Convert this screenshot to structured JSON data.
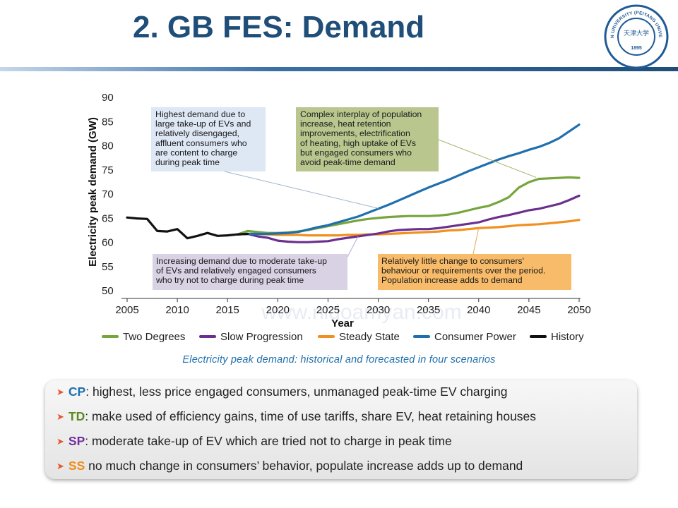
{
  "title": "2. GB FES: Demand",
  "logo": {
    "text_top": "TIANJIN UNIVERSITY (PEIYANG UNIVERSITY)",
    "year": "1895",
    "chinese": "天津大学"
  },
  "caption": "Electricity peak demand:  historical and forecasted in four scenarios",
  "watermark": "www.nidoamyan.com",
  "chart_data": {
    "type": "line",
    "title": "",
    "xlabel": "Year",
    "ylabel": "Electricity peak demand (GW)",
    "xlim": [
      2005,
      2050
    ],
    "ylim": [
      50,
      90
    ],
    "x_ticks": [
      "2005",
      "2010",
      "2015",
      "2020",
      "2025",
      "2030",
      "2035",
      "2040",
      "2045",
      "2050"
    ],
    "y_ticks": [
      "50",
      "55",
      "60",
      "65",
      "70",
      "75",
      "80",
      "85",
      "90"
    ],
    "series": [
      {
        "name": "History",
        "color": "#111111",
        "x": [
          2005,
          2006,
          2007,
          2008,
          2009,
          2010,
          2011,
          2012,
          2013,
          2014,
          2015,
          2016,
          2017
        ],
        "y": [
          65,
          64.8,
          64.7,
          62.2,
          62.1,
          62.6,
          60.7,
          61.2,
          61.8,
          61.2,
          61.3,
          61.5,
          61.6
        ]
      },
      {
        "name": "Two Degrees",
        "color": "#77a53d",
        "x": [
          2016,
          2017,
          2018,
          2019,
          2020,
          2021,
          2022,
          2023,
          2024,
          2025,
          2026,
          2027,
          2028,
          2029,
          2030,
          2031,
          2032,
          2033,
          2034,
          2035,
          2036,
          2037,
          2038,
          2039,
          2040,
          2041,
          2042,
          2043,
          2044,
          2045,
          2046,
          2047,
          2048,
          2049,
          2050
        ],
        "y": [
          61.5,
          62.2,
          62,
          61.8,
          61.8,
          61.9,
          62.1,
          62.4,
          62.8,
          63.2,
          63.6,
          64.0,
          64.4,
          64.7,
          64.9,
          65.1,
          65.2,
          65.3,
          65.3,
          65.3,
          65.4,
          65.6,
          66,
          66.5,
          67,
          67.4,
          68.2,
          69.2,
          71.2,
          72.3,
          73,
          73.1,
          73.2,
          73.3,
          73.2
        ]
      },
      {
        "name": "Slow Progression",
        "color": "#6b2f8f",
        "x": [
          2016,
          2017,
          2018,
          2019,
          2020,
          2021,
          2022,
          2023,
          2024,
          2025,
          2026,
          2027,
          2028,
          2029,
          2030,
          2031,
          2032,
          2033,
          2034,
          2035,
          2036,
          2037,
          2038,
          2039,
          2040,
          2041,
          2042,
          2043,
          2044,
          2045,
          2046,
          2047,
          2048,
          2049,
          2050
        ],
        "y": [
          61.5,
          61.6,
          61.1,
          60.8,
          60.2,
          60,
          59.9,
          59.9,
          60,
          60.1,
          60.5,
          60.8,
          61.1,
          61.4,
          61.7,
          62.1,
          62.4,
          62.5,
          62.6,
          62.6,
          62.8,
          63.1,
          63.4,
          63.7,
          64,
          64.6,
          65.1,
          65.5,
          66,
          66.5,
          66.8,
          67.3,
          67.8,
          68.6,
          69.5
        ]
      },
      {
        "name": "Steady State",
        "color": "#f0901f",
        "x": [
          2016,
          2017,
          2018,
          2019,
          2020,
          2021,
          2022,
          2023,
          2024,
          2025,
          2026,
          2027,
          2028,
          2029,
          2030,
          2031,
          2032,
          2033,
          2034,
          2035,
          2036,
          2037,
          2038,
          2039,
          2040,
          2041,
          2042,
          2043,
          2044,
          2045,
          2046,
          2047,
          2048,
          2049,
          2050
        ],
        "y": [
          61.5,
          61.6,
          61.6,
          61.5,
          61.4,
          61.4,
          61.4,
          61.3,
          61.3,
          61.3,
          61.3,
          61.4,
          61.4,
          61.5,
          61.5,
          61.6,
          61.7,
          61.8,
          61.9,
          62,
          62.1,
          62.3,
          62.4,
          62.6,
          62.8,
          62.9,
          63,
          63.2,
          63.4,
          63.5,
          63.6,
          63.8,
          64,
          64.2,
          64.5
        ]
      },
      {
        "name": "Consumer Power",
        "color": "#1f6fae",
        "x": [
          2016,
          2017,
          2018,
          2019,
          2020,
          2021,
          2022,
          2023,
          2024,
          2025,
          2026,
          2027,
          2028,
          2029,
          2030,
          2031,
          2032,
          2033,
          2034,
          2035,
          2036,
          2037,
          2038,
          2039,
          2040,
          2041,
          2042,
          2043,
          2044,
          2045,
          2046,
          2047,
          2048,
          2049,
          2050
        ],
        "y": [
          61.5,
          61.6,
          61.6,
          61.6,
          61.7,
          61.8,
          62,
          62.5,
          63,
          63.4,
          64,
          64.6,
          65.2,
          66,
          66.8,
          67.6,
          68.5,
          69.4,
          70.3,
          71.2,
          72,
          72.8,
          73.7,
          74.6,
          75.4,
          76.2,
          77,
          77.7,
          78.3,
          79,
          79.6,
          80.4,
          81.4,
          82.8,
          84.2
        ]
      }
    ],
    "legend_position": "bottom",
    "annotations": [
      {
        "id": "highest",
        "text": [
          "Highest demand due to",
          "large take-up of EVs and",
          "relatively disengaged,",
          "affluent consumers who",
          "are content to charge",
          "during peak time"
        ],
        "color": "#dbe5f3",
        "points_to": "Consumer Power 2030"
      },
      {
        "id": "complex",
        "text": [
          "Complex interplay of population",
          "increase, heat retention",
          "improvements, electrification",
          "of heating, high uptake of EVs",
          "but engaged consumers who",
          "avoid peak-time demand"
        ],
        "color": "#b3c284",
        "points_to": "Two Degrees 2046"
      },
      {
        "id": "increasing",
        "text": [
          "Increasing demand due to moderate take-up",
          "of EVs and relatively engaged consumers",
          "who try not to charge during peak time"
        ],
        "color": "#d6cde2",
        "points_to": "Slow Progression 2028"
      },
      {
        "id": "little",
        "text": [
          "Relatively little change to consumers'",
          "behaviour or requirements over the period.",
          "Population increase adds to demand"
        ],
        "color": "#f6b55d",
        "points_to": "Steady State 2040"
      }
    ]
  },
  "bullets": [
    {
      "key": "CP",
      "key_color": "#1f6fae",
      "sep": ":",
      "text": " highest, less price engaged consumers, unmanaged  peak-time EV charging"
    },
    {
      "key": "TD",
      "key_color": "#5a8a1f",
      "sep": ":",
      "text": " make used of efficiency gains, time of use tariffs, share EV, heat retaining houses"
    },
    {
      "key": "SP",
      "key_color": "#7030a0",
      "sep": ":",
      "text": " moderate take-up of EV which are tried not to charge in peak time"
    },
    {
      "key": "SS",
      "key_color": "#f08c1a",
      "sep": "",
      "text": " no much change in consumers’ behavior, populate increase adds up to demand"
    }
  ]
}
